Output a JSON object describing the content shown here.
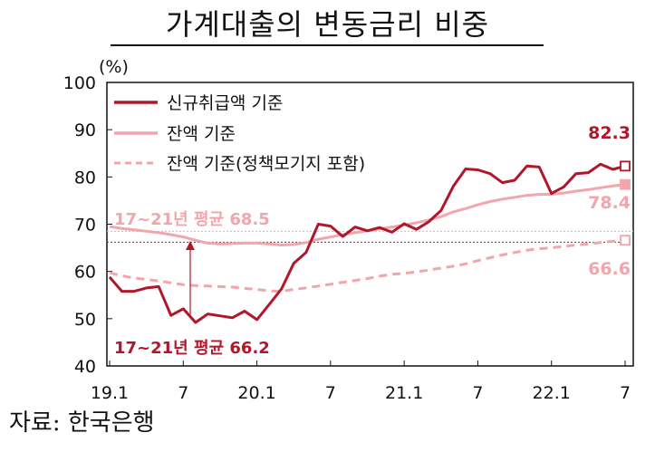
{
  "title": "가계대출의 변동금리 비중",
  "source": "자료: 한국은행",
  "colors": {
    "new": "#b0182a",
    "balance": "#f2a6ab",
    "balance_incl": "#f2a6ab",
    "avg_new": "#b0182a",
    "avg_balance": "#f2a6ab"
  },
  "chart_data": {
    "type": "line",
    "unit": "(%)",
    "ylim": [
      40,
      100
    ],
    "yticks": [
      40,
      50,
      60,
      70,
      80,
      90,
      100
    ],
    "x": [
      "19.1",
      "19.2",
      "19.3",
      "19.4",
      "19.5",
      "19.6",
      "19.7",
      "19.8",
      "19.9",
      "19.10",
      "19.11",
      "19.12",
      "20.1",
      "20.2",
      "20.3",
      "20.4",
      "20.5",
      "20.6",
      "20.7",
      "20.8",
      "20.9",
      "20.10",
      "20.11",
      "20.12",
      "21.1",
      "21.2",
      "21.3",
      "21.4",
      "21.5",
      "21.6",
      "21.7",
      "21.8",
      "21.9",
      "21.10",
      "21.11",
      "21.12",
      "22.1",
      "22.2",
      "22.3",
      "22.4",
      "22.5",
      "22.6",
      "22.7"
    ],
    "xticks": [
      "19.1",
      "7",
      "20.1",
      "7",
      "21.1",
      "7",
      "22.1",
      "7"
    ],
    "series": [
      {
        "name": "신규취급액 기준",
        "style": "solid-dark",
        "values": [
          58.8,
          55.8,
          55.8,
          56.5,
          56.8,
          50.7,
          52.1,
          49.2,
          51.0,
          50.6,
          50.2,
          51.6,
          49.8,
          53.0,
          56.3,
          61.7,
          64.0,
          70.0,
          69.6,
          67.4,
          69.4,
          68.6,
          69.3,
          68.3,
          70.1,
          68.9,
          70.5,
          72.9,
          78.0,
          81.7,
          81.5,
          80.7,
          78.8,
          79.3,
          82.3,
          82.1,
          76.5,
          77.9,
          80.7,
          80.9,
          82.7,
          81.6,
          82.3
        ],
        "end_label": "82.3"
      },
      {
        "name": "잔액 기준",
        "style": "solid-light",
        "values": [
          69.5,
          69.1,
          68.8,
          68.5,
          68.2,
          67.8,
          67.3,
          66.6,
          66.0,
          65.8,
          65.9,
          66.0,
          66.0,
          65.8,
          65.6,
          65.7,
          66.1,
          66.8,
          67.3,
          67.8,
          68.2,
          68.6,
          69.0,
          69.4,
          69.8,
          70.3,
          70.9,
          71.6,
          72.6,
          73.3,
          74.1,
          74.8,
          75.3,
          75.7,
          76.1,
          76.3,
          76.3,
          76.6,
          77.0,
          77.3,
          77.7,
          78.1,
          78.4
        ],
        "end_label": "78.4"
      },
      {
        "name": "잔액 기준(정책모기지 포함)",
        "style": "dashed-light",
        "values": [
          59.7,
          59.1,
          58.6,
          58.3,
          58.0,
          57.6,
          57.2,
          57.0,
          56.9,
          56.8,
          56.7,
          56.4,
          56.2,
          55.9,
          55.8,
          56.2,
          56.5,
          56.9,
          57.3,
          57.7,
          58.1,
          58.5,
          59.0,
          59.4,
          59.6,
          59.9,
          60.3,
          60.7,
          61.1,
          61.6,
          62.3,
          62.9,
          63.5,
          64.0,
          64.5,
          64.8,
          65.0,
          65.3,
          65.6,
          65.8,
          66.1,
          66.4,
          66.6
        ],
        "end_label": "66.6"
      }
    ],
    "reference_lines": [
      {
        "label": "17~21년 평균 68.5",
        "value": 68.5,
        "style": "dotted-light"
      },
      {
        "label": "17~21년 평균 66.2",
        "value": 66.2,
        "style": "dotted-dark"
      }
    ]
  }
}
